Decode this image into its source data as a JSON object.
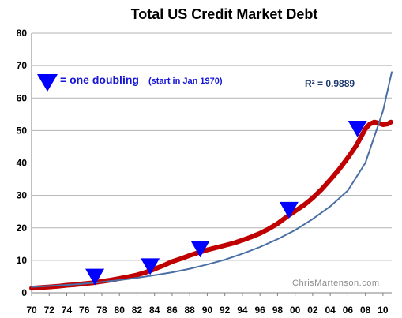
{
  "chart_data": {
    "type": "line",
    "title": "Total US Credit Market Debt",
    "xlabel": "",
    "ylabel": "",
    "x_ticks": [
      "70",
      "72",
      "74",
      "76",
      "78",
      "80",
      "82",
      "84",
      "86",
      "88",
      "90",
      "92",
      "94",
      "96",
      "98",
      "00",
      "02",
      "04",
      "06",
      "08",
      "10"
    ],
    "y_ticks": [
      "0",
      "10",
      "20",
      "30",
      "40",
      "50",
      "60",
      "70",
      "80"
    ],
    "xlim": [
      1970,
      2011
    ],
    "ylim": [
      0,
      80
    ],
    "grid": "horizontal",
    "series": [
      {
        "name": "",
        "color": "#c00000",
        "x": [
          1970,
          1971,
          1972,
          1973,
          1974,
          1975,
          1976,
          1977,
          1978,
          1979,
          1980,
          1981,
          1982,
          1983,
          1984,
          1985,
          1986,
          1987,
          1988,
          1989,
          1990,
          1991,
          1992,
          1993,
          1994,
          1995,
          1996,
          1997,
          1998,
          1999,
          2000,
          2001,
          2002,
          2003,
          2004,
          2005,
          2006,
          2007,
          2008,
          2008.5,
          2009,
          2009.5,
          2010,
          2010.5,
          2010.9
        ],
        "values": [
          1.4,
          1.6,
          1.8,
          2.0,
          2.3,
          2.5,
          2.8,
          3.1,
          3.5,
          3.9,
          4.4,
          4.9,
          5.5,
          6.3,
          7.3,
          8.4,
          9.6,
          10.5,
          11.5,
          12.4,
          13.2,
          13.9,
          14.6,
          15.3,
          16.2,
          17.2,
          18.3,
          19.7,
          21.3,
          23.3,
          25.2,
          27.0,
          29.2,
          31.8,
          34.8,
          38.0,
          41.6,
          45.5,
          50.5,
          52.0,
          52.6,
          52.3,
          51.8,
          52.0,
          52.6
        ]
      },
      {
        "name": "",
        "color": "#4a6fa5",
        "x": [
          1970,
          1972,
          1974,
          1976,
          1978,
          1980,
          1982,
          1984,
          1986,
          1988,
          1990,
          1992,
          1994,
          1996,
          1998,
          2000,
          2002,
          2004,
          2006,
          2008,
          2010,
          2011
        ],
        "values": [
          1.8,
          2.1,
          2.4,
          2.8,
          3.3,
          3.9,
          4.6,
          5.4,
          6.3,
          7.4,
          8.7,
          10.2,
          12.0,
          14.1,
          16.5,
          19.3,
          22.7,
          26.6,
          31.5,
          40.0,
          56.0,
          68.0
        ]
      }
    ],
    "markers": {
      "shape": "down-triangle",
      "color": "#0000ff",
      "points": [
        {
          "x": 1977.2,
          "y": 7.4
        },
        {
          "x": 1983.5,
          "y": 10.6
        },
        {
          "x": 1989.2,
          "y": 16.0
        },
        {
          "x": 1999.3,
          "y": 28.0
        },
        {
          "x": 2007.1,
          "y": 53.0
        }
      ]
    },
    "annotations": {
      "legend_text": "= one doubling",
      "legend_note": "(start in Jan 1970)",
      "r2": "R² = 0.9889",
      "credit": "ChrisMartenson.com"
    }
  }
}
